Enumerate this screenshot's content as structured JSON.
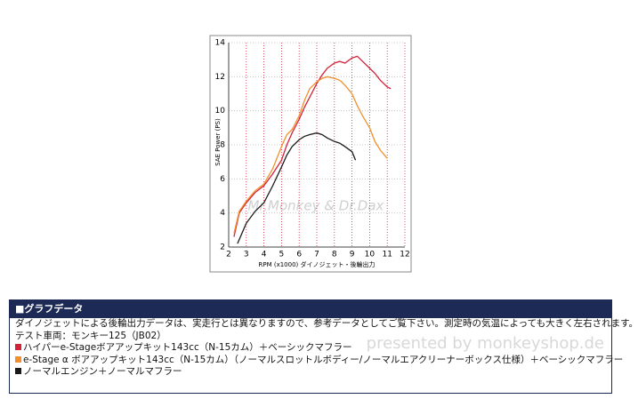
{
  "chart_data": {
    "type": "line",
    "y_label": "SAE Power (PS)",
    "x_label": "RPM (x1000) ダイノジェット・後輪出力",
    "watermark": "Mr.Monkey & Dr.Dax",
    "xlim": [
      2,
      12
    ],
    "xticks": [
      2,
      3,
      4,
      5,
      6,
      7,
      8,
      9,
      10,
      11,
      12
    ],
    "ylim": [
      2,
      14
    ],
    "yticks": [
      2,
      4,
      6,
      8,
      10,
      12,
      14
    ],
    "grid": true,
    "series": [
      {
        "name": "ハイパーe-Stageボアアップキット143cc（N-15カム）＋ベーシックマフラー",
        "color": "#d2233a",
        "x": [
          2.3,
          2.6,
          3,
          3.5,
          4,
          4.5,
          5,
          5.3,
          5.6,
          6,
          6.3,
          6.6,
          7,
          7.3,
          7.6,
          8,
          8.3,
          8.6,
          9,
          9.3,
          9.6,
          10,
          10.3,
          10.6,
          11,
          11.2
        ],
        "values": [
          2.6,
          4,
          4.6,
          5.2,
          5.6,
          6.3,
          7.1,
          8,
          8.7,
          9.5,
          10.2,
          10.8,
          11.6,
          12.1,
          12.5,
          12.8,
          12.9,
          12.8,
          13.1,
          13.2,
          12.9,
          12.5,
          12.2,
          11.8,
          11.4,
          11.3
        ]
      },
      {
        "name": "e-Stage α ボアアップキット143cc（N-15カム）（ノーマルスロットルボディー/ノーマルエアクリーナーボックス仕様）＋ベーシックマフラー",
        "color": "#f0902e",
        "x": [
          2.3,
          2.6,
          3,
          3.5,
          4,
          4.5,
          5,
          5.3,
          5.6,
          6,
          6.3,
          6.6,
          7,
          7.3,
          7.6,
          8,
          8.3,
          8.6,
          9,
          9.3,
          9.6,
          10,
          10.3,
          10.6,
          11
        ],
        "values": [
          2.8,
          4.1,
          4.7,
          5.3,
          5.7,
          6.6,
          7.9,
          8.6,
          8.9,
          9.7,
          10.6,
          11.3,
          11.7,
          11.9,
          12,
          11.9,
          11.8,
          11.5,
          11,
          10.3,
          9.7,
          9,
          8.2,
          7.7,
          7.2
        ]
      },
      {
        "name": "ノーマルエンジン＋ノーマルマフラー",
        "color": "#1a1a1a",
        "x": [
          2.5,
          3,
          3.5,
          4,
          4.5,
          5,
          5.3,
          5.6,
          6,
          6.3,
          6.6,
          7,
          7.3,
          7.6,
          8,
          8.3,
          8.6,
          9,
          9.2
        ],
        "values": [
          2.2,
          3.4,
          4.1,
          4.6,
          5.6,
          6.7,
          7.4,
          7.9,
          8.3,
          8.5,
          8.6,
          8.7,
          8.6,
          8.4,
          8.2,
          8.1,
          7.9,
          7.6,
          7.1
        ]
      }
    ]
  },
  "panel": {
    "heading": "■グラフデータ",
    "note": "ダイノジェットによる後輪出力データは、実走行とは異なりますので、参考データとしてご覧下さい。測定時の気温によっても大きく左右されます。",
    "vehicle": "テスト車両：モンキー125（JB02）",
    "watermark": "presented by monkeyshop.de"
  }
}
